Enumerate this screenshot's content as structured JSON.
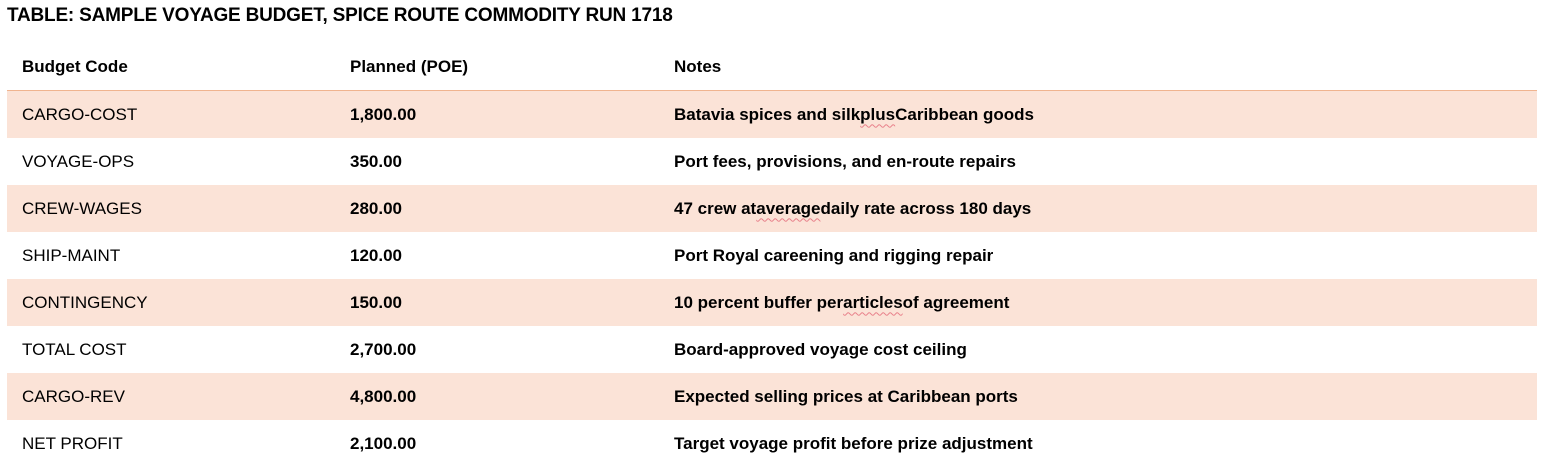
{
  "document": {
    "title": "TABLE: SAMPLE VOYAGE BUDGET, SPICE ROUTE COMMODITY RUN 1718"
  },
  "table": {
    "columns": [
      "Budget Code",
      "Planned (POE)",
      "Notes"
    ],
    "rows": [
      {
        "code": "CARGO-COST",
        "planned": "1,800.00",
        "notes": "Batavia spices and silk plus Caribbean goods"
      },
      {
        "code": "VOYAGE-OPS",
        "planned": "350.00",
        "notes": "Port fees, provisions, and en-route repairs"
      },
      {
        "code": "CREW-WAGES",
        "planned": "280.00",
        "notes": "47 crew at average daily rate across 180 days"
      },
      {
        "code": "SHIP-MAINT",
        "planned": "120.00",
        "notes": "Port Royal careening and rigging repair"
      },
      {
        "code": "CONTINGENCY",
        "planned": "150.00",
        "notes": "10 percent buffer per articles of agreement"
      },
      {
        "code": "TOTAL COST",
        "planned": "2,700.00",
        "notes": "Board-approved voyage cost ceiling"
      },
      {
        "code": "CARGO-REV",
        "planned": "4,800.00",
        "notes": "Expected selling prices at Caribbean ports"
      },
      {
        "code": "NET PROFIT",
        "planned": "2,100.00",
        "notes": "Target voyage profit before prize adjustment"
      }
    ]
  },
  "colors": {
    "row_shade": "#fbe3d7",
    "header_rule": "#f0b48f",
    "spellcheck_underline": "#e8808a"
  }
}
